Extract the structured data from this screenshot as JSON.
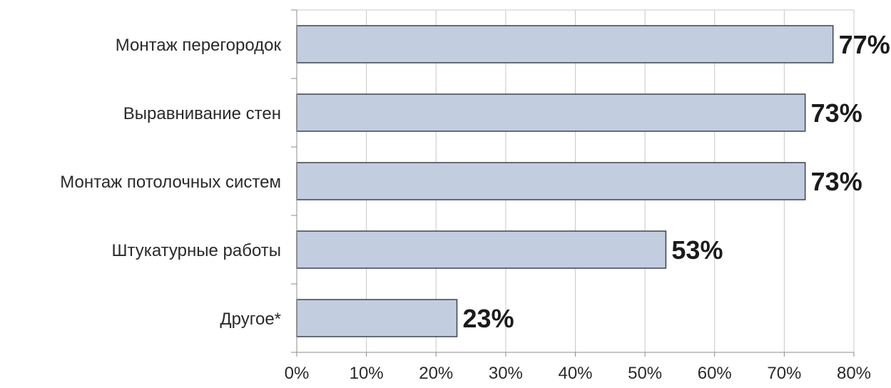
{
  "chart_data": {
    "type": "bar",
    "orientation": "horizontal",
    "categories": [
      "Монтаж перегородок",
      "Выравнивание стен",
      "Монтаж потолочных систем",
      "Штукатурные работы",
      "Другое*"
    ],
    "values": [
      77,
      73,
      73,
      53,
      23
    ],
    "data_labels": [
      "77%",
      "73%",
      "73%",
      "53%",
      "23%"
    ],
    "xlim": [
      0,
      80
    ],
    "x_ticks": [
      0,
      10,
      20,
      30,
      40,
      50,
      60,
      70,
      80
    ],
    "x_tick_labels": [
      "0%",
      "10%",
      "20%",
      "30%",
      "40%",
      "50%",
      "60%",
      "70%",
      "80%"
    ],
    "grid": true,
    "bar_color": "#c3cde0",
    "bar_edge_color": "#3d4450",
    "grid_color": "#c8c8c8",
    "axis_color": "#8c8c8c"
  }
}
